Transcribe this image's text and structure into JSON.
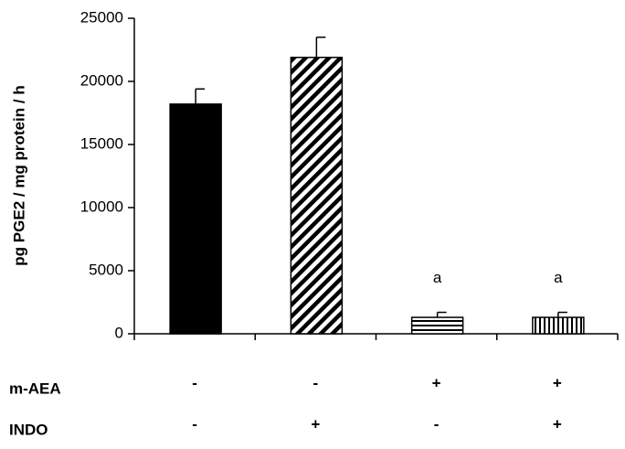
{
  "chart_data": {
    "type": "bar",
    "y_label": "pg PGE2 / mg protein / h",
    "categories": [
      null,
      null,
      null,
      null
    ],
    "values": [
      18200,
      21900,
      1300,
      1300
    ],
    "errors": [
      1200,
      1600,
      400,
      400
    ],
    "patterns": [
      "solid",
      "diagonal",
      "horizontal",
      "vertical"
    ],
    "color": "#000000",
    "annotations": [
      null,
      null,
      "a",
      "a"
    ],
    "ylim": [
      0,
      25000
    ],
    "yticks": [
      0,
      5000,
      10000,
      15000,
      20000,
      25000
    ],
    "treatments": [
      {
        "name": "m-AEA",
        "values": [
          "-",
          "-",
          "+",
          "+"
        ]
      },
      {
        "name": "INDO",
        "values": [
          "-",
          "+",
          "-",
          "+"
        ]
      }
    ]
  }
}
